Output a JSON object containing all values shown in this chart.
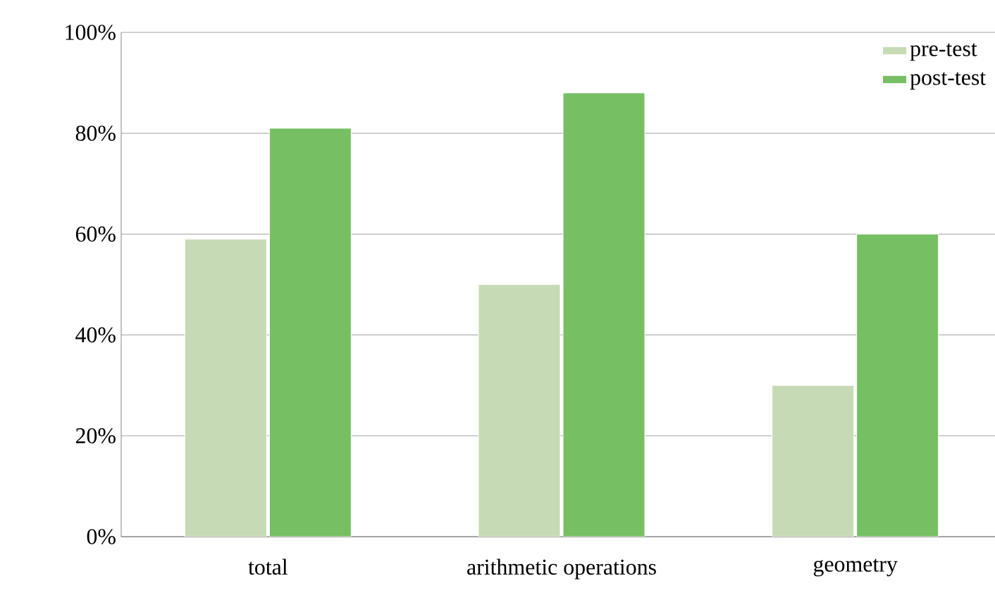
{
  "chart_data": {
    "type": "bar",
    "categories": [
      "total",
      "arithmetic operations",
      "geometry"
    ],
    "series": [
      {
        "name": "pre-test",
        "color": "#c6dab6",
        "values": [
          59,
          50,
          30
        ]
      },
      {
        "name": "post-test",
        "color": "#77bf63",
        "values": [
          81,
          88,
          60
        ]
      }
    ],
    "ylim": [
      0,
      100
    ],
    "yticks": [
      {
        "value": 0,
        "label": "0%"
      },
      {
        "value": 20,
        "label": "20%"
      },
      {
        "value": 40,
        "label": "40%"
      },
      {
        "value": 60,
        "label": "60%"
      },
      {
        "value": 80,
        "label": "80%"
      },
      {
        "value": 100,
        "label": "100%"
      }
    ],
    "grid": "y",
    "legend": "top right"
  }
}
